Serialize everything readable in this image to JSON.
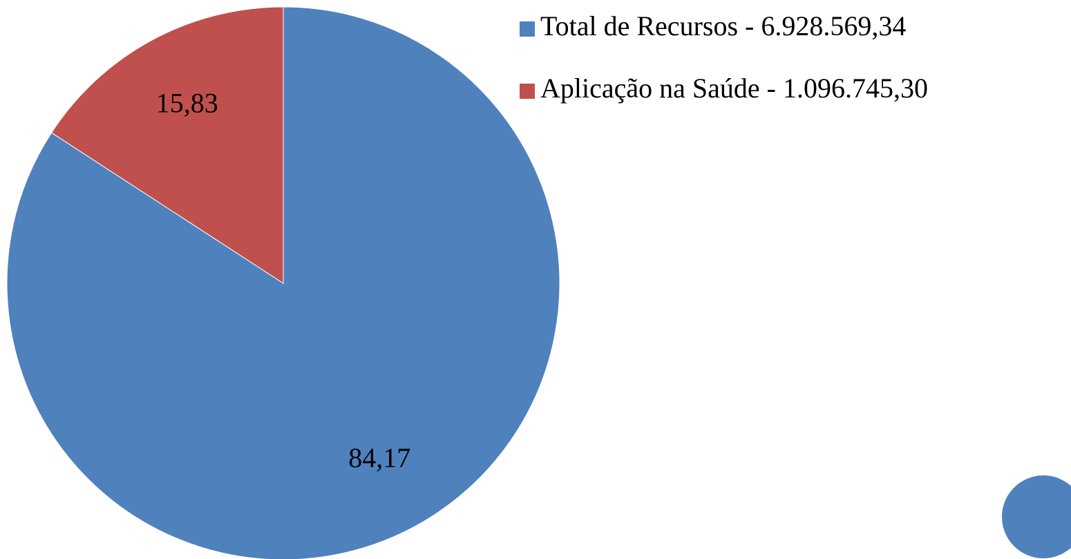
{
  "chart_data": {
    "type": "pie",
    "categories": [
      "Total de Recursos - 6.928.569,34",
      "Aplicação na Saúde - 1.096.745,30"
    ],
    "values": [
      84.17,
      15.83
    ],
    "value_labels": [
      "84,17",
      "15,83"
    ],
    "colors": [
      "#4f81bd",
      "#c0504d"
    ]
  }
}
